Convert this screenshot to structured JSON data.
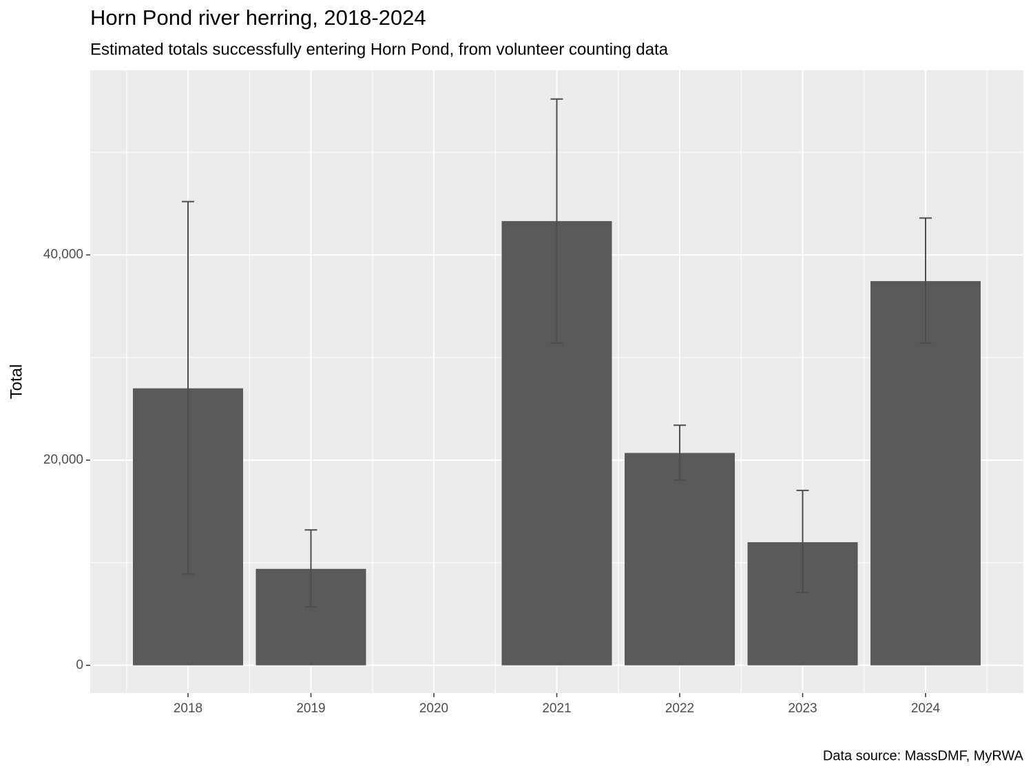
{
  "chart_data": {
    "type": "bar",
    "title": "Horn Pond river herring, 2018-2024",
    "subtitle": "Estimated totals successfully entering Horn Pond, from volunteer counting data",
    "y_label": "Total",
    "caption": "Data source: MassDMF, MyRWA",
    "categories": [
      "2018",
      "2019",
      "2020",
      "2021",
      "2022",
      "2023",
      "2024"
    ],
    "values": [
      27000,
      9400,
      null,
      43300,
      20700,
      12000,
      37450
    ],
    "lower": [
      8900,
      5700,
      null,
      31400,
      18050,
      7100,
      31400
    ],
    "upper": [
      45200,
      13200,
      null,
      55200,
      23400,
      17050,
      43600
    ],
    "color": "#595959",
    "error_color": "#4d4d4d",
    "ylim": [
      -2700,
      58000
    ],
    "yticks": [
      {
        "value": 0,
        "label": "0"
      },
      {
        "value": 20000,
        "label": "20,000"
      },
      {
        "value": 40000,
        "label": "40,000"
      }
    ],
    "minor_yticks": [
      10000,
      30000,
      50000
    ],
    "grid": true
  }
}
